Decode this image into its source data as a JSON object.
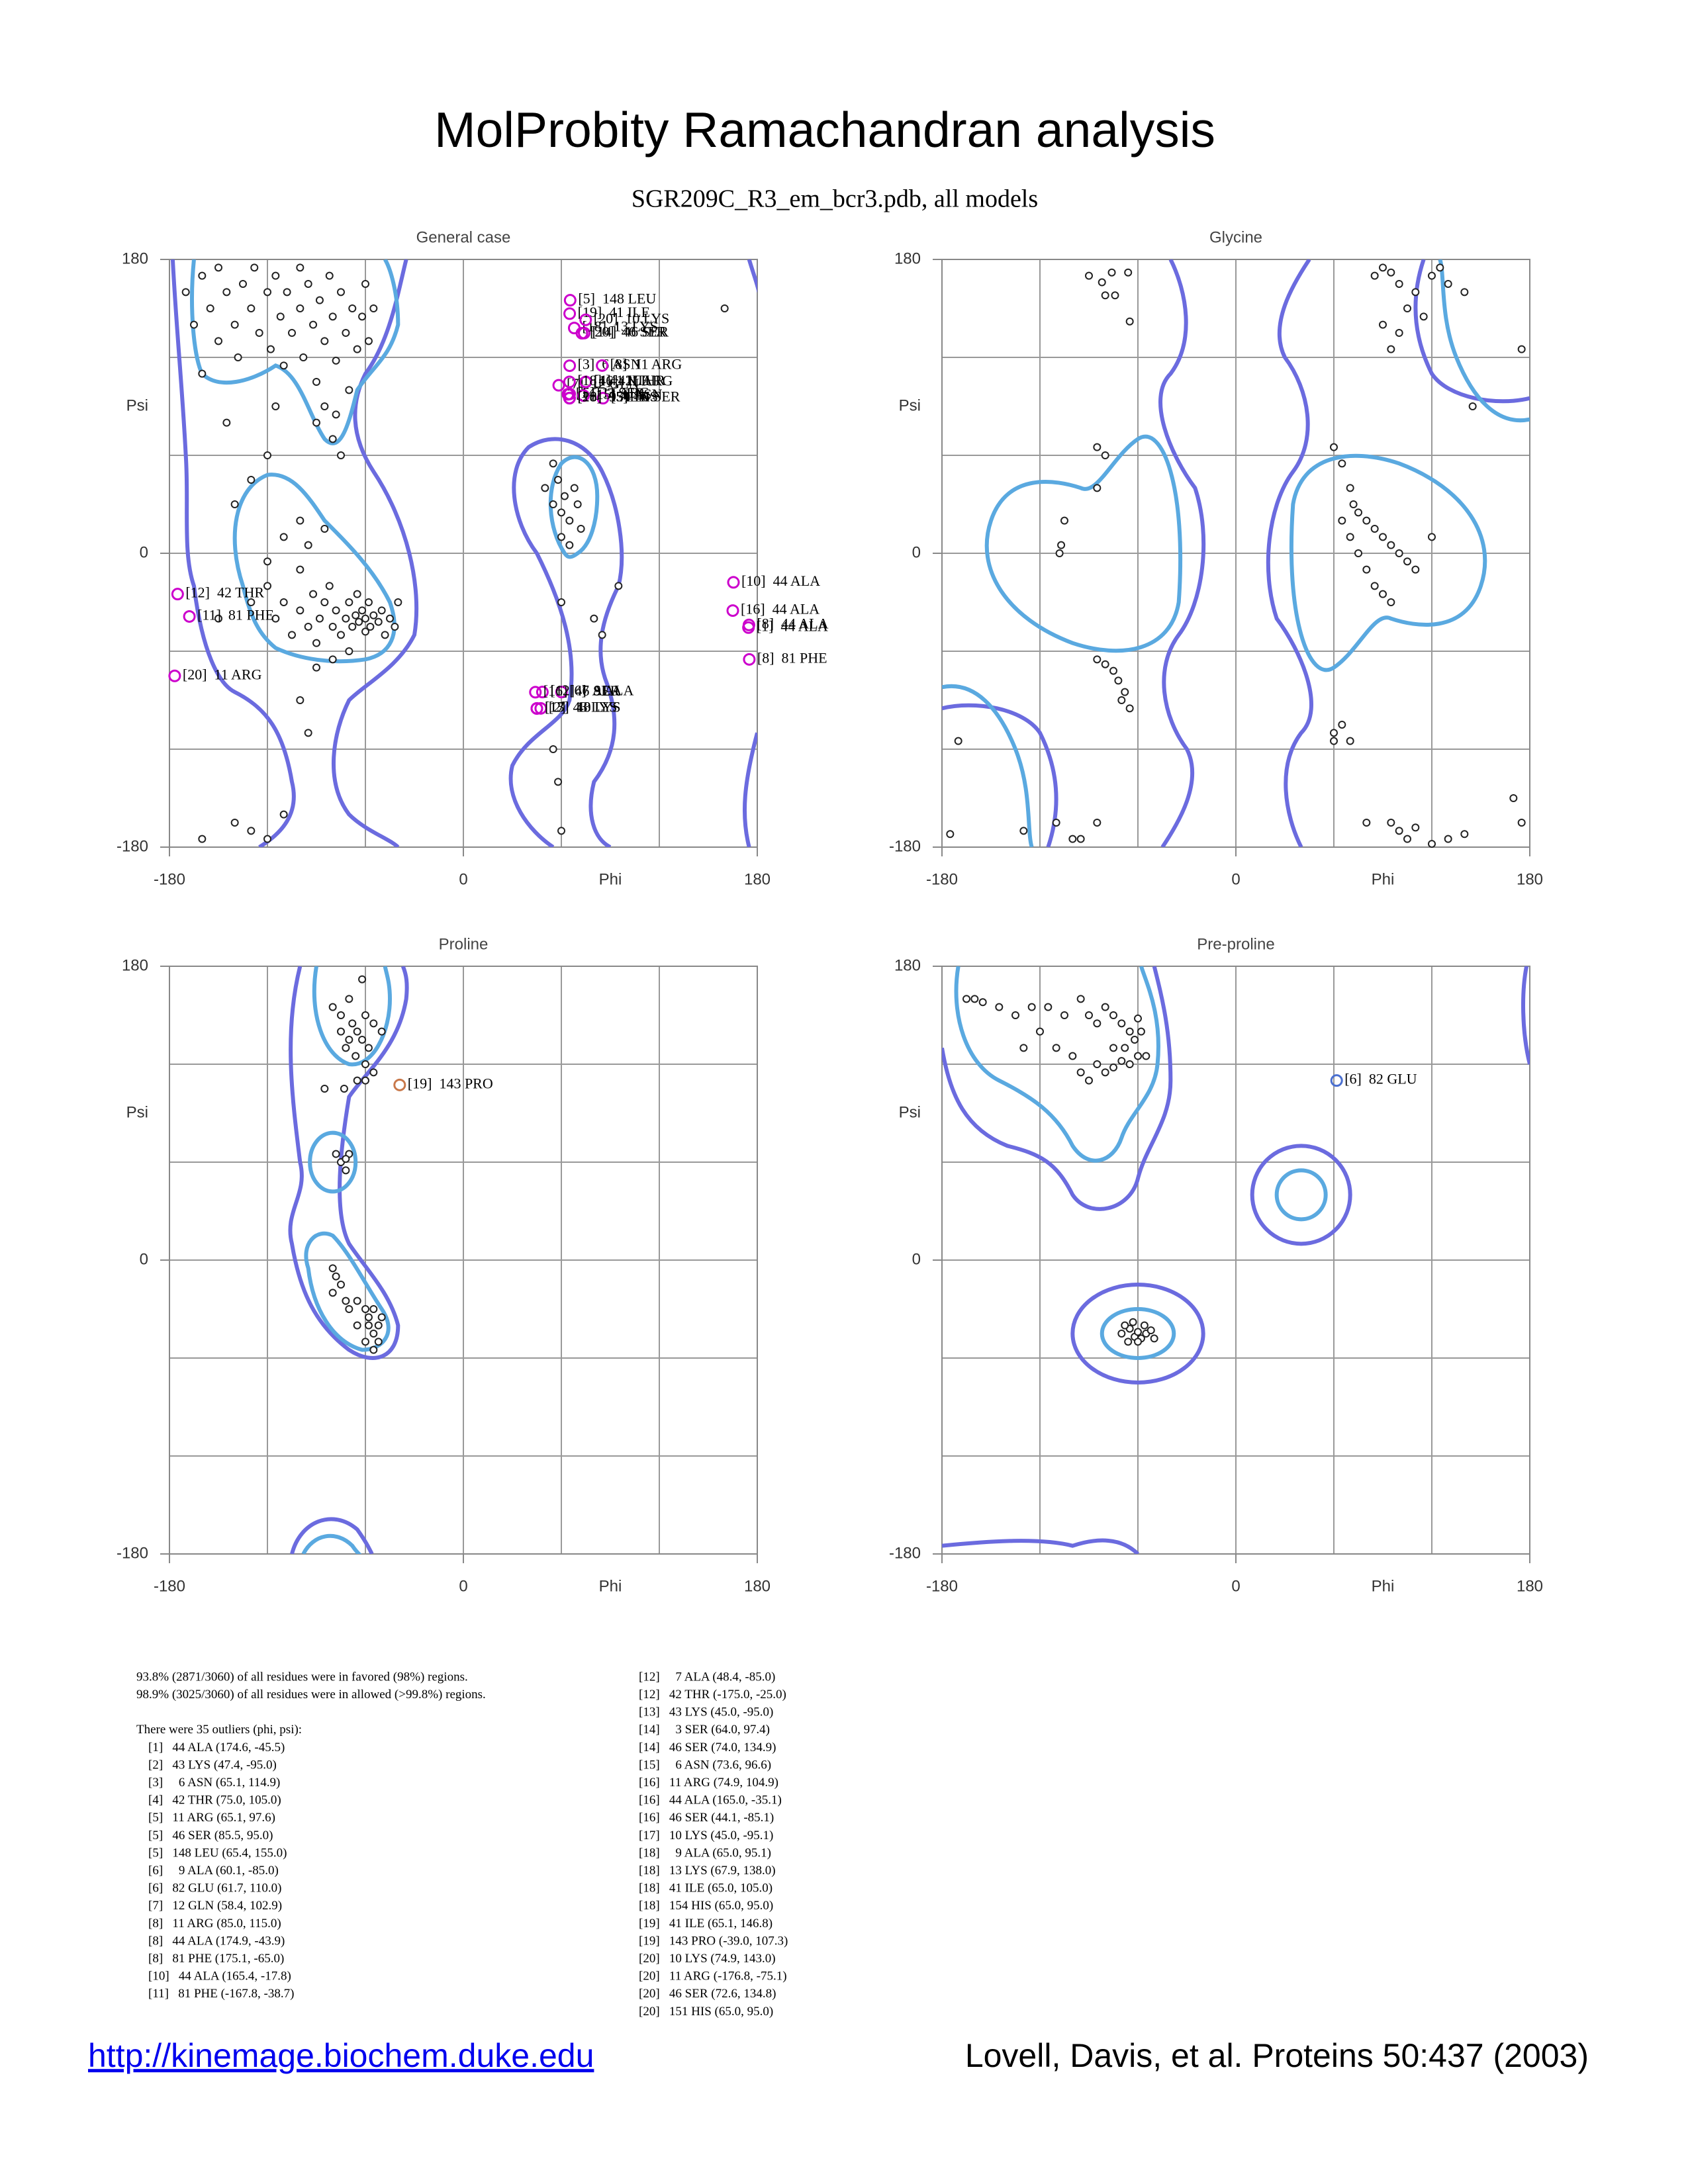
{
  "title": "MolProbity Ramachandran analysis",
  "subtitle": "SGR209C_R3_em_bcr3.pdb, all models",
  "chart_data": [
    {
      "type": "scatter",
      "title": "General case",
      "xlabel": "Phi",
      "ylabel": "Psi",
      "xlim": [
        -180,
        180
      ],
      "ylim": [
        -180,
        180
      ],
      "xticks": [
        -180,
        0,
        180
      ],
      "yticks": [
        -180,
        0,
        180
      ],
      "xgrid": [
        -180,
        -120,
        -60,
        0,
        60,
        120,
        180
      ],
      "ygrid": [
        -180,
        -120,
        -60,
        0,
        60,
        120,
        180
      ],
      "points": {
        "color": "#222222",
        "x": [
          -170,
          -165,
          -160,
          -155,
          -150,
          -150,
          -145,
          -140,
          -138,
          -135,
          -130,
          -128,
          -125,
          -120,
          -118,
          -115,
          -112,
          -110,
          -108,
          -105,
          -100,
          -100,
          -98,
          -95,
          -92,
          -90,
          -88,
          -85,
          -82,
          -80,
          -78,
          -75,
          -72,
          -70,
          -68,
          -65,
          -62,
          -60,
          -58,
          -55,
          -90,
          -80,
          -75,
          -85,
          -78,
          -160,
          -145,
          -120,
          -115,
          -120,
          -115,
          -110,
          -105,
          -100,
          -100,
          -95,
          -92,
          -90,
          -88,
          -85,
          -82,
          -80,
          -78,
          -75,
          -72,
          -70,
          -68,
          -66,
          -65,
          -64,
          -62,
          -60,
          -60,
          -58,
          -57,
          -55,
          -52,
          -50,
          -48,
          -45,
          -42,
          -40,
          -110,
          -100,
          -95,
          -85,
          -120,
          -130,
          -90,
          -80,
          -70,
          -140,
          -130,
          -150,
          -100,
          -95,
          -130,
          -120,
          -110,
          -140,
          -160,
          50,
          55,
          58,
          60,
          62,
          65,
          68,
          70,
          55,
          60,
          65,
          72,
          80,
          85,
          60,
          55,
          58,
          60,
          95,
          160
        ],
        "y": [
          160,
          140,
          170,
          150,
          130,
          175,
          160,
          140,
          120,
          165,
          150,
          175,
          135,
          160,
          125,
          170,
          145,
          115,
          160,
          135,
          175,
          150,
          120,
          165,
          140,
          105,
          155,
          130,
          170,
          145,
          118,
          160,
          135,
          100,
          150,
          125,
          145,
          165,
          130,
          150,
          80,
          70,
          60,
          90,
          85,
          110,
          80,
          60,
          90,
          -20,
          -40,
          -30,
          -50,
          -10,
          -35,
          -45,
          -25,
          -55,
          -40,
          -30,
          -20,
          -45,
          -35,
          -50,
          -40,
          -30,
          -45,
          -38,
          -25,
          -42,
          -35,
          -48,
          -40,
          -30,
          -45,
          -38,
          -42,
          -35,
          -50,
          -40,
          -45,
          -30,
          10,
          20,
          5,
          15,
          -5,
          -30,
          -70,
          -65,
          -60,
          30,
          45,
          -40,
          -90,
          -110,
          -170,
          -175,
          -160,
          -165,
          -175,
          40,
          30,
          45,
          25,
          35,
          20,
          40,
          30,
          55,
          10,
          5,
          15,
          -40,
          -50,
          -30,
          -120,
          -140,
          -170,
          -20,
          150
        ]
      },
      "outliers": {
        "color": "#cc00cc",
        "x": [
          174.6,
          47.4,
          65.1,
          75.0,
          65.1,
          85.5,
          65.4,
          60.1,
          58.4,
          85.0,
          174.9,
          175.1,
          165.4,
          -167.8,
          48.4,
          -175.0,
          45.0,
          64.0,
          74.0,
          73.6,
          74.9,
          165.0,
          44.1,
          45.0,
          65.0,
          67.9,
          65.0,
          65.0,
          65.1,
          74.9,
          -176.8,
          72.6,
          65.0
        ],
        "y": [
          -45.5,
          -95.0,
          114.9,
          105.0,
          97.6,
          95.0,
          155.0,
          -85.0,
          102.9,
          115.0,
          -43.9,
          -65.0,
          -17.8,
          -38.7,
          -85.0,
          -25.0,
          -95.0,
          97.4,
          134.9,
          96.6,
          104.9,
          -35.1,
          -85.1,
          -95.1,
          95.1,
          138.0,
          105.0,
          95.0,
          146.8,
          143.0,
          -75.1,
          134.8,
          95.0
        ],
        "labels": [
          "[1]  44 ALA",
          "[2]  43 LYS",
          "[3]  6 ASN",
          "[4]  42 THR",
          "[5]  11 ARG",
          "[5]  46 SER",
          "[5]  148 LEU",
          "[6]  9 ALA",
          "[7]  12 GLN",
          "[8]  11 ARG",
          "[8]  44 ALA",
          "[8]  81 PHE",
          "[10]  44 ALA",
          "[11]  81 PHE",
          "[12]  7 ALA",
          "[12]  42 THR",
          "[13]  43 LYS",
          "[14]  3 SER",
          "[14]  46 SER",
          "[15]  6 ASN",
          "[16]  11 ARG",
          "[16]  44 ALA",
          "[16]  46 SER",
          "[17]  10 LYS",
          "[18]  9 ALA",
          "[18]  13 LYS",
          "[18]  41 ILE",
          "[18]  154 HIS",
          "[19]  41 ILE",
          "[20]  10 LYS",
          "[20]  11 ARG",
          "[20]  46 SER",
          "[20]  151 HIS"
        ]
      }
    },
    {
      "type": "scatter",
      "title": "Glycine",
      "xlabel": "Phi",
      "ylabel": "Psi",
      "xlim": [
        -180,
        180
      ],
      "ylim": [
        -180,
        180
      ],
      "xticks": [
        -180,
        0,
        180
      ],
      "yticks": [
        -180,
        0,
        180
      ],
      "xgrid": [
        -180,
        -120,
        -60,
        0,
        60,
        120,
        180
      ],
      "ygrid": [
        -180,
        -120,
        -60,
        0,
        60,
        120,
        180
      ],
      "points": {
        "color": "#222222",
        "x": [
          -90,
          -82,
          -76,
          -80,
          -74,
          -66,
          -65,
          -85,
          -80,
          -85,
          -105,
          -107,
          -108,
          -85,
          -80,
          -75,
          -72,
          -68,
          -70,
          -65,
          -85,
          -110,
          -130,
          -100,
          -95,
          -175,
          -170,
          60,
          65,
          70,
          72,
          75,
          80,
          85,
          90,
          95,
          100,
          105,
          110,
          85,
          90,
          95,
          120,
          65,
          70,
          75,
          80,
          85,
          90,
          95,
          100,
          105,
          110,
          115,
          120,
          125,
          130,
          90,
          95,
          100,
          140,
          145,
          175,
          60,
          65,
          60,
          70,
          95,
          100,
          105,
          110,
          120,
          130,
          140,
          170,
          175,
          80
        ],
        "y": [
          170,
          166,
          172,
          158,
          158,
          172,
          142,
          65,
          60,
          40,
          20,
          5,
          0,
          -65,
          -68,
          -72,
          -78,
          -85,
          -90,
          -95,
          -165,
          -165,
          -170,
          -175,
          -175,
          -172,
          -115,
          65,
          55,
          40,
          30,
          25,
          20,
          15,
          10,
          5,
          0,
          -5,
          -10,
          -20,
          -25,
          -30,
          10,
          20,
          10,
          0,
          -10,
          170,
          175,
          172,
          165,
          150,
          160,
          145,
          170,
          175,
          165,
          140,
          125,
          135,
          160,
          90,
          125,
          -110,
          -105,
          -115,
          -115,
          -165,
          -170,
          -175,
          -168,
          -178,
          -175,
          -172,
          -150,
          -165,
          -165
        ]
      }
    },
    {
      "type": "scatter",
      "title": "Proline",
      "xlabel": "Phi",
      "ylabel": "Psi",
      "xlim": [
        -180,
        180
      ],
      "ylim": [
        -180,
        180
      ],
      "xticks": [
        -180,
        0,
        180
      ],
      "yticks": [
        -180,
        0,
        180
      ],
      "xgrid": [
        -180,
        -120,
        -60,
        0,
        60,
        120,
        180
      ],
      "ygrid": [
        -180,
        -120,
        -60,
        0,
        60,
        120,
        180
      ],
      "points": {
        "color": "#222222",
        "x": [
          -80,
          -75,
          -70,
          -68,
          -65,
          -62,
          -60,
          -58,
          -72,
          -66,
          -60,
          -55,
          -75,
          -70,
          -55,
          -50,
          -60,
          -65,
          -73,
          -85,
          -62,
          -75,
          -72,
          -70,
          -78,
          -72,
          -80,
          -78,
          -75,
          -80,
          -72,
          -70,
          -65,
          -60,
          -58,
          -55,
          -52,
          -50,
          -55,
          -52,
          -58,
          -60,
          -65,
          -55
        ],
        "y": [
          155,
          150,
          160,
          145,
          140,
          135,
          150,
          130,
          130,
          125,
          120,
          115,
          140,
          135,
          145,
          140,
          110,
          110,
          105,
          105,
          172,
          60,
          55,
          65,
          65,
          62,
          -5,
          -10,
          -15,
          -20,
          -25,
          -30,
          -25,
          -30,
          -35,
          -30,
          -40,
          -35,
          -45,
          -50,
          -40,
          -50,
          -40,
          -55
        ]
      },
      "outliers": {
        "color": "#c8784a",
        "x": [
          -39.0
        ],
        "y": [
          107.3
        ],
        "labels": [
          "[19]  143 PRO"
        ]
      }
    },
    {
      "type": "scatter",
      "title": "Pre-proline",
      "xlabel": "Phi",
      "ylabel": "Psi",
      "xlim": [
        -180,
        180
      ],
      "ylim": [
        -180,
        180
      ],
      "xticks": [
        -180,
        0,
        180
      ],
      "yticks": [
        -180,
        0,
        180
      ],
      "xgrid": [
        -180,
        -120,
        -60,
        0,
        60,
        120,
        180
      ],
      "ygrid": [
        -180,
        -120,
        -60,
        0,
        60,
        120,
        180
      ],
      "points": {
        "color": "#222222",
        "x": [
          -165,
          -160,
          -155,
          -145,
          -135,
          -125,
          -115,
          -105,
          -95,
          -90,
          -85,
          -80,
          -75,
          -70,
          -65,
          -62,
          -60,
          -58,
          -85,
          -80,
          -75,
          -70,
          -65,
          -60,
          -55,
          -90,
          -95,
          -100,
          -110,
          -120,
          -130,
          -75,
          -68,
          -70,
          -65,
          -62,
          -60,
          -58,
          -55,
          -52,
          -66,
          -60,
          -56,
          -63,
          -50,
          -68
        ],
        "y": [
          160,
          160,
          158,
          155,
          150,
          155,
          155,
          150,
          160,
          150,
          145,
          155,
          150,
          145,
          140,
          135,
          148,
          140,
          120,
          115,
          118,
          122,
          120,
          125,
          125,
          110,
          115,
          125,
          130,
          140,
          130,
          130,
          130,
          -45,
          -42,
          -47,
          -44,
          -48,
          -45,
          -43,
          -50,
          -50,
          -40,
          -38,
          -48,
          -40
        ]
      },
      "outliers": {
        "color": "#4a6fd0",
        "x": [
          61.7
        ],
        "y": [
          110.0
        ],
        "labels": [
          "[6]  82 GLU"
        ]
      }
    }
  ],
  "summary": [
    "93.8% (2871/3060) of all residues were in favored (98%) regions.",
    "98.9% (3025/3060) of all residues were in allowed (>99.8%) regions."
  ],
  "outlier_intro": "There were 35 outliers (phi, psi):",
  "outlier_list": [
    "[1]   44 ALA (174.6, -45.5)",
    "[2]   43 LYS (47.4, -95.0)",
    "[3]     6 ASN (65.1, 114.9)",
    "[4]   42 THR (75.0, 105.0)",
    "[5]   11 ARG (65.1, 97.6)",
    "[5]   46 SER (85.5, 95.0)",
    "[5]   148 LEU (65.4, 155.0)",
    "[6]     9 ALA (60.1, -85.0)",
    "[6]   82 GLU (61.7, 110.0)",
    "[7]   12 GLN (58.4, 102.9)",
    "[8]   11 ARG (85.0, 115.0)",
    "[8]   44 ALA (174.9, -43.9)",
    "[8]   81 PHE (175.1, -65.0)",
    "[10]   44 ALA (165.4, -17.8)",
    "[11]   81 PHE (-167.8, -38.7)",
    "[12]     7 ALA (48.4, -85.0)",
    "[12]   42 THR (-175.0, -25.0)",
    "[13]   43 LYS (45.0, -95.0)",
    "[14]     3 SER (64.0, 97.4)",
    "[14]   46 SER (74.0, 134.9)",
    "[15]     6 ASN (73.6, 96.6)",
    "[16]   11 ARG (74.9, 104.9)",
    "[16]   44 ALA (165.0, -35.1)",
    "[16]   46 SER (44.1, -85.1)",
    "[17]   10 LYS (45.0, -95.1)",
    "[18]     9 ALA (65.0, 95.1)",
    "[18]   13 LYS (67.9, 138.0)",
    "[18]   41 ILE (65.0, 105.0)",
    "[18]   154 HIS (65.0, 95.0)",
    "[19]   41 ILE (65.1, 146.8)",
    "[19]   143 PRO (-39.0, 107.3)",
    "[20]   10 LYS (74.9, 143.0)",
    "[20]   11 ARG (-176.8, -75.1)",
    "[20]   46 SER (72.6, 134.8)",
    "[20]   151 HIS (65.0, 95.0)"
  ],
  "link": "http://kinemage.biochem.duke.edu",
  "citation": "Lovell, Davis, et al. Proteins 50:437 (2003)"
}
